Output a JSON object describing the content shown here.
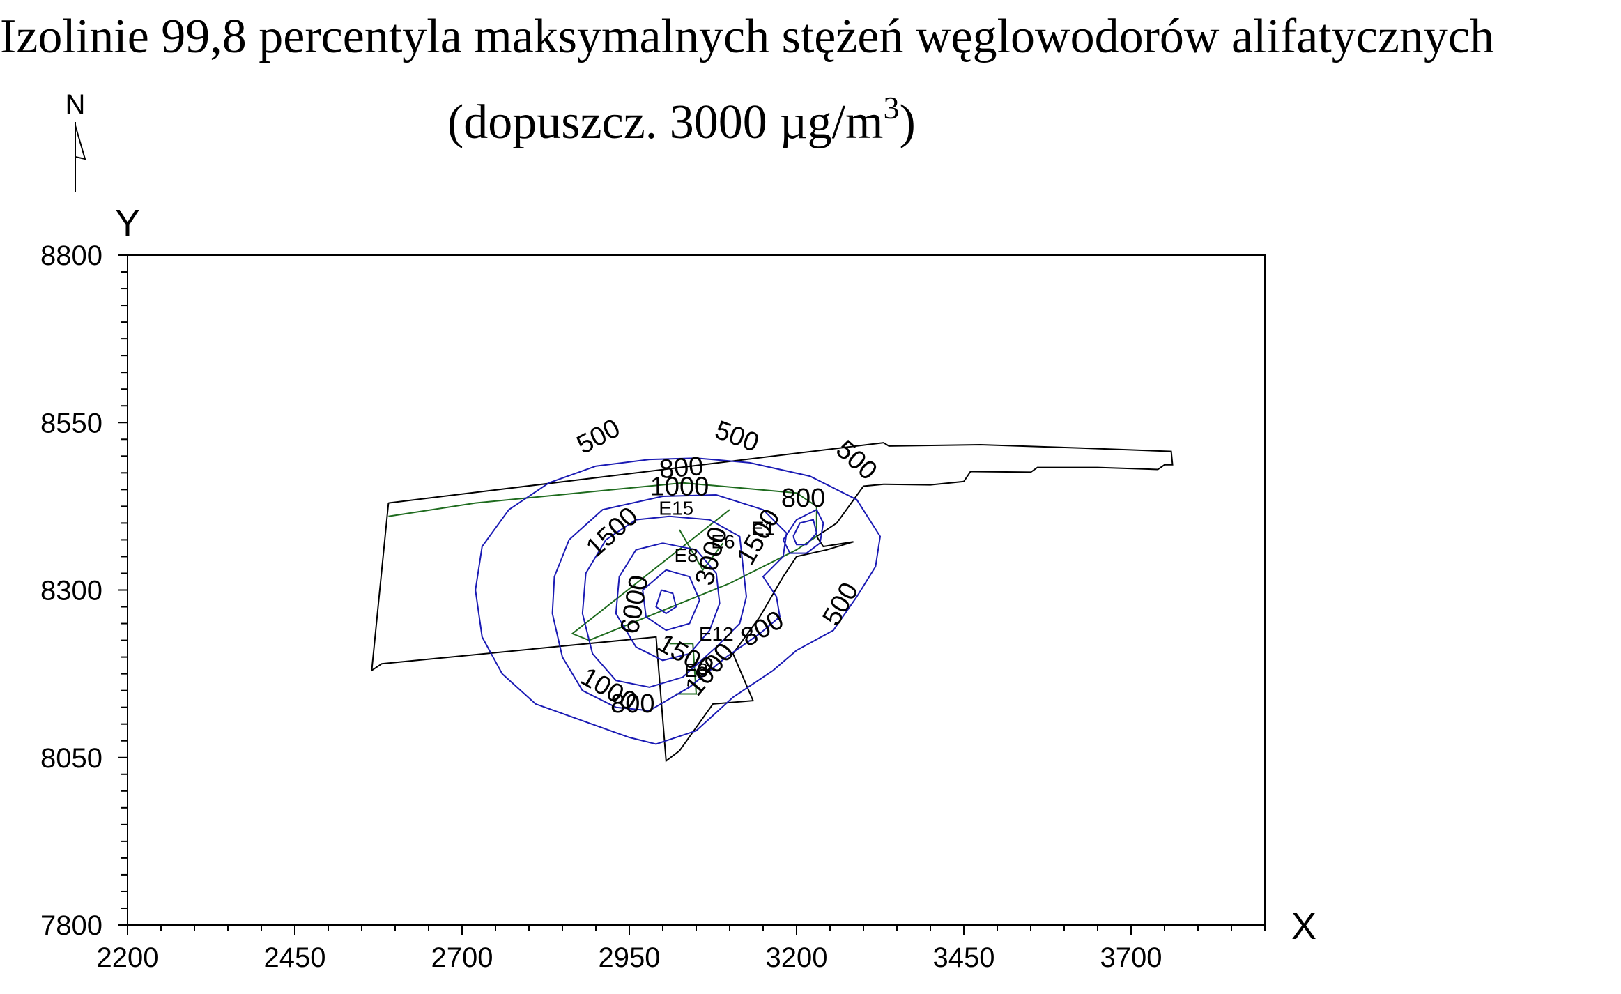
{
  "title": {
    "line1": "Izolinie 99,8 percentyla maksymalnych stężeń węglowodorów alifatycznych",
    "line2_prefix": "(dopuszcz. 3000 µg/m",
    "line2_sup": "3",
    "line2_suffix": ")"
  },
  "north_arrow": {
    "label": "N"
  },
  "chart_data": {
    "type": "contour",
    "xlabel": "X",
    "ylabel": "Y",
    "xlim": [
      2200,
      3900
    ],
    "ylim": [
      7800,
      8800
    ],
    "x_ticks": [
      2200,
      2450,
      2700,
      2950,
      3200,
      3450,
      3700
    ],
    "y_ticks": [
      7800,
      8050,
      8300,
      8550
    ],
    "x_minor_step": 50,
    "y_minor_step": 25,
    "grid": false,
    "colors": {
      "contour": "#1a1ab4",
      "site_boundary": "#000000",
      "source_area": "#1e6b1e"
    },
    "site_boundary": [
      [
        2590,
        8430
      ],
      [
        3330,
        8520
      ],
      [
        3338,
        8515
      ],
      [
        3475,
        8517
      ],
      [
        3625,
        8512
      ],
      [
        3760,
        8507
      ],
      [
        3762,
        8487
      ],
      [
        3750,
        8487
      ],
      [
        3740,
        8480
      ],
      [
        3650,
        8483
      ],
      [
        3560,
        8483
      ],
      [
        3550,
        8476
      ],
      [
        3460,
        8477
      ],
      [
        3450,
        8462
      ],
      [
        3400,
        8457
      ],
      [
        3330,
        8458
      ],
      [
        3300,
        8455
      ],
      [
        3260,
        8400
      ],
      [
        3230,
        8380
      ],
      [
        3240,
        8365
      ],
      [
        3285,
        8372
      ],
      [
        3245,
        8360
      ],
      [
        3200,
        8350
      ],
      [
        3180,
        8320
      ],
      [
        3145,
        8260
      ],
      [
        3105,
        8205
      ],
      [
        3135,
        8135
      ],
      [
        3075,
        8130
      ],
      [
        3025,
        8060
      ],
      [
        3005,
        8045
      ],
      [
        2990,
        8230
      ],
      [
        2580,
        8190
      ],
      [
        2565,
        8180
      ],
      [
        2590,
        8430
      ]
    ],
    "source_areas": [
      [
        [
          2590,
          8410
        ],
        [
          2720,
          8430
        ],
        [
          3030,
          8460
        ],
        [
          3200,
          8445
        ],
        [
          3230,
          8425
        ],
        [
          3230,
          8380
        ],
        [
          3200,
          8360
        ],
        [
          3100,
          8310
        ],
        [
          2890,
          8225
        ],
        [
          2865,
          8235
        ],
        [
          3100,
          8420
        ]
      ],
      [
        [
          3025,
          8390
        ],
        [
          3060,
          8330
        ],
        [
          3090,
          8370
        ]
      ],
      [
        [
          3010,
          8220
        ],
        [
          3045,
          8220
        ],
        [
          3050,
          8145
        ],
        [
          3020,
          8145
        ]
      ]
    ],
    "contours": [
      {
        "value": 500,
        "points": [
          [
            2980,
            8495
          ],
          [
            3050,
            8497
          ],
          [
            3130,
            8490
          ],
          [
            3220,
            8470
          ],
          [
            3290,
            8435
          ],
          [
            3325,
            8380
          ],
          [
            3318,
            8335
          ],
          [
            3290,
            8290
          ],
          [
            3255,
            8240
          ],
          [
            3200,
            8210
          ],
          [
            3165,
            8180
          ],
          [
            3105,
            8140
          ],
          [
            3050,
            8090
          ],
          [
            2990,
            8070
          ],
          [
            2950,
            8080
          ],
          [
            2880,
            8105
          ],
          [
            2810,
            8130
          ],
          [
            2760,
            8175
          ],
          [
            2730,
            8230
          ],
          [
            2720,
            8300
          ],
          [
            2730,
            8365
          ],
          [
            2770,
            8420
          ],
          [
            2830,
            8460
          ],
          [
            2900,
            8485
          ],
          [
            2980,
            8495
          ]
        ]
      },
      {
        "value": 800,
        "points": [
          [
            3000,
            8440
          ],
          [
            3080,
            8442
          ],
          [
            3150,
            8420
          ],
          [
            3185,
            8385
          ],
          [
            3180,
            8350
          ],
          [
            3150,
            8320
          ],
          [
            3170,
            8290
          ],
          [
            3175,
            8260
          ],
          [
            3145,
            8235
          ],
          [
            3095,
            8200
          ],
          [
            3040,
            8155
          ],
          [
            2980,
            8120
          ],
          [
            2930,
            8125
          ],
          [
            2880,
            8150
          ],
          [
            2850,
            8200
          ],
          [
            2835,
            8265
          ],
          [
            2838,
            8320
          ],
          [
            2860,
            8375
          ],
          [
            2910,
            8420
          ],
          [
            3000,
            8440
          ]
        ]
      },
      {
        "value": 1000,
        "points": [
          [
            3010,
            8410
          ],
          [
            3070,
            8405
          ],
          [
            3115,
            8380
          ],
          [
            3120,
            8335
          ],
          [
            3125,
            8290
          ],
          [
            3115,
            8250
          ],
          [
            3080,
            8215
          ],
          [
            3030,
            8170
          ],
          [
            2980,
            8155
          ],
          [
            2930,
            8165
          ],
          [
            2895,
            8205
          ],
          [
            2880,
            8265
          ],
          [
            2885,
            8325
          ],
          [
            2915,
            8375
          ],
          [
            2960,
            8405
          ],
          [
            3010,
            8410
          ]
        ]
      },
      {
        "value": 1500,
        "points": [
          [
            3000,
            8370
          ],
          [
            3050,
            8360
          ],
          [
            3080,
            8325
          ],
          [
            3085,
            8280
          ],
          [
            3070,
            8240
          ],
          [
            3040,
            8205
          ],
          [
            3000,
            8195
          ],
          [
            2960,
            8215
          ],
          [
            2930,
            8265
          ],
          [
            2935,
            8320
          ],
          [
            2960,
            8360
          ],
          [
            3000,
            8370
          ]
        ]
      },
      {
        "value": 3000,
        "points": [
          [
            3005,
            8330
          ],
          [
            3040,
            8320
          ],
          [
            3055,
            8285
          ],
          [
            3040,
            8250
          ],
          [
            3005,
            8240
          ],
          [
            2975,
            8260
          ],
          [
            2970,
            8300
          ],
          [
            3005,
            8330
          ]
        ]
      },
      {
        "value": 6000,
        "points": [
          [
            2998,
            8300
          ],
          [
            3015,
            8295
          ],
          [
            3020,
            8275
          ],
          [
            3005,
            8265
          ],
          [
            2990,
            8275
          ],
          [
            2998,
            8300
          ]
        ]
      },
      {
        "value": 800,
        "points": [
          [
            3180,
            8375
          ],
          [
            3200,
            8405
          ],
          [
            3230,
            8420
          ],
          [
            3240,
            8400
          ],
          [
            3235,
            8370
          ],
          [
            3215,
            8355
          ],
          [
            3190,
            8355
          ],
          [
            3180,
            8375
          ]
        ]
      },
      {
        "value": 1500,
        "points": [
          [
            3195,
            8380
          ],
          [
            3205,
            8400
          ],
          [
            3225,
            8405
          ],
          [
            3230,
            8385
          ],
          [
            3215,
            8368
          ],
          [
            3200,
            8368
          ],
          [
            3195,
            8380
          ]
        ]
      }
    ],
    "contour_labels": [
      {
        "text": "500",
        "x": 2905,
        "y": 8527,
        "angle": -28
      },
      {
        "text": "500",
        "x": 3110,
        "y": 8527,
        "angle": 20
      },
      {
        "text": "500",
        "x": 3288,
        "y": 8492,
        "angle": 42
      },
      {
        "text": "500",
        "x": 3268,
        "y": 8278,
        "angle": -60
      },
      {
        "text": "800",
        "x": 3028,
        "y": 8480,
        "angle": -5
      },
      {
        "text": "1000",
        "x": 3025,
        "y": 8452,
        "angle": 0
      },
      {
        "text": "1500",
        "x": 2926,
        "y": 8385,
        "angle": -42
      },
      {
        "text": "800",
        "x": 3210,
        "y": 8435,
        "angle": 0
      },
      {
        "text": "800",
        "x": 3150,
        "y": 8240,
        "angle": -30
      },
      {
        "text": "1000",
        "x": 2918,
        "y": 8150,
        "angle": 30
      },
      {
        "text": "800",
        "x": 2955,
        "y": 8128,
        "angle": 0
      },
      {
        "text": "1500",
        "x": 3033,
        "y": 8200,
        "angle": 30
      },
      {
        "text": "6000",
        "x": 2960,
        "y": 8278,
        "angle": -80
      },
      {
        "text": "3000",
        "x": 3075,
        "y": 8350,
        "angle": -75
      },
      {
        "text": "1500",
        "x": 3145,
        "y": 8378,
        "angle": -60
      },
      {
        "text": "1000",
        "x": 3072,
        "y": 8180,
        "angle": -50
      }
    ],
    "source_labels": [
      {
        "text": "E15",
        "x": 3020,
        "y": 8420
      },
      {
        "text": "E8",
        "x": 3035,
        "y": 8350
      },
      {
        "text": "E6",
        "x": 3090,
        "y": 8370
      },
      {
        "text": "E1",
        "x": 3150,
        "y": 8390
      },
      {
        "text": "E12",
        "x": 3080,
        "y": 8232
      },
      {
        "text": "E8",
        "x": 3050,
        "y": 8178
      }
    ]
  }
}
